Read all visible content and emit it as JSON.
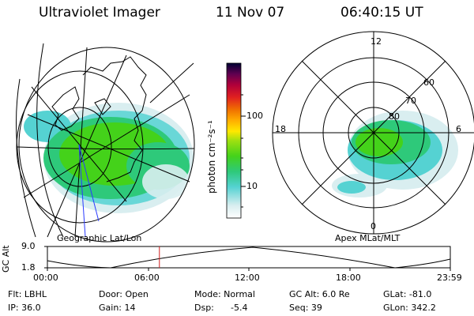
{
  "header": {
    "instrument": "Ultraviolet Imager",
    "date": "11 Nov 07",
    "time": "06:40:15 UT"
  },
  "colorbar": {
    "label": "photon cm⁻²s⁻¹",
    "ticks": [
      "100",
      "10"
    ],
    "stops": [
      "#ffffff",
      "#d9eef0",
      "#55d2d2",
      "#2ec97a",
      "#44d21a",
      "#9fe010",
      "#ffe800",
      "#ffae00",
      "#f07000",
      "#e02020",
      "#b0003a",
      "#600050",
      "#000033"
    ]
  },
  "geo_map": {
    "label": "Geographic Lat/Lon"
  },
  "polar_plot": {
    "label": "Apex MLat/MLT",
    "mlt_labels": {
      "top": "12",
      "bottom": "0",
      "left": "18",
      "right": "6"
    },
    "lat_labels": [
      "60",
      "70",
      "80"
    ]
  },
  "altitude_plot": {
    "ylabel": "GC Alt",
    "yticks": [
      "9.0",
      "1.8"
    ],
    "xticks": [
      "00:00",
      "06:00",
      "12:00",
      "18:00",
      "23:59"
    ],
    "current_time_fraction": 0.278
  },
  "info": {
    "filter": "Flt: LBHL",
    "ip": "IP: 36.0",
    "door": "Door: Open",
    "gain": "Gain: 14",
    "mode": "Mode: Normal",
    "dsp_label": "Dsp:",
    "dsp_value": "-5.4",
    "gc_alt": "GC Alt: 6.0 Re",
    "seq": "Seq: 39",
    "glat": "GLat: -81.0",
    "glon": "GLon: 342.2"
  },
  "colors": {
    "map_blue": "#2a3aff",
    "time_marker": "#d02020",
    "grid": "#000000"
  }
}
